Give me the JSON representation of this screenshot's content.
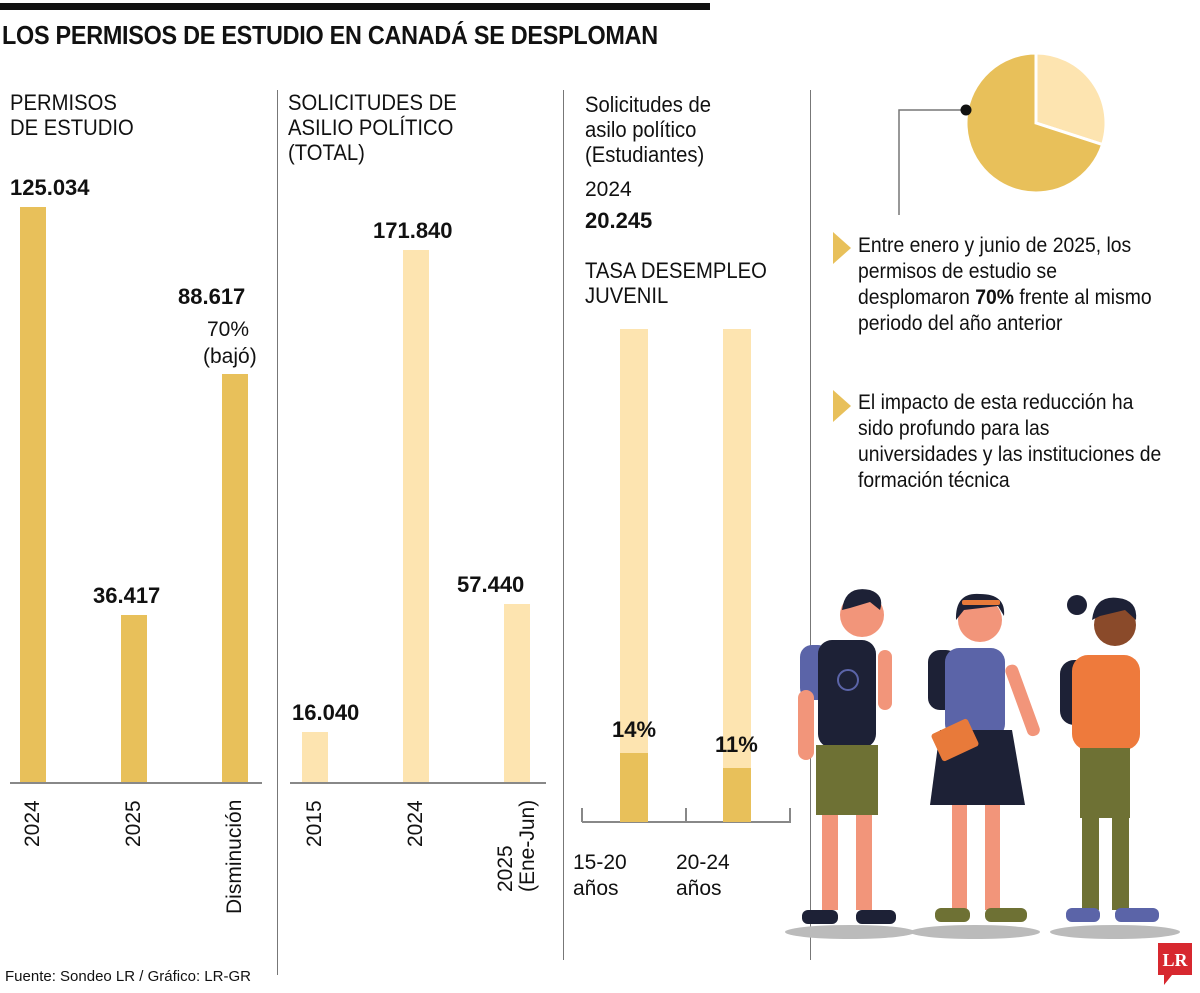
{
  "title": "LOS PERMISOS DE ESTUDIO EN CANADÁ SE DESPLOMAN",
  "colors": {
    "dark": "#e8c05a",
    "light": "#fde4b0",
    "text": "#111111",
    "logo": "#d7282f"
  },
  "chart_data": [
    {
      "type": "bar",
      "title": "PERMISOS DE ESTUDIO",
      "categories": [
        "2024",
        "2025",
        "Disminución"
      ],
      "values": [
        125034,
        36417,
        88617
      ],
      "data_labels": [
        "125.034",
        "36.417",
        "88.617"
      ],
      "annotation": [
        "70%",
        "(bajó)"
      ],
      "color": "#e8c05a"
    },
    {
      "type": "bar",
      "title": "SOLICITUDES DE ASILIO POLÍTICO (TOTAL)",
      "categories": [
        "2015",
        "2024",
        "2025 (Ene-Jun)"
      ],
      "category_lines": [
        [
          "2015"
        ],
        [
          "2024"
        ],
        [
          "2025",
          "(Ene-Jun)"
        ]
      ],
      "values": [
        16040,
        171840,
        57440
      ],
      "data_labels": [
        "16.040",
        "171.840",
        "57.440"
      ],
      "color": "#fde4b0"
    },
    {
      "type": "bar",
      "title": "TASA DESEMPLEO JUVENIL",
      "categories": [
        "15-20 años",
        "20-24 años"
      ],
      "category_lines": [
        [
          "15-20",
          "años"
        ],
        [
          "20-24",
          "años"
        ]
      ],
      "values": [
        14,
        11
      ],
      "data_labels": [
        "14%",
        "11%"
      ],
      "ylim": [
        0,
        100
      ],
      "color": "#e8c05a",
      "background_color": "#fde4b0"
    },
    {
      "type": "pie",
      "slices": [
        {
          "value": 70,
          "color": "#e8c05a"
        },
        {
          "value": 30,
          "color": "#fde4b0"
        }
      ]
    }
  ],
  "asylum_students": {
    "label_lines": [
      "Solicitudes de",
      "asilo político",
      "(Estudiantes)"
    ],
    "year": "2024",
    "value": "20.245"
  },
  "unemployment_title_lines": [
    "TASA DESEMPLEO",
    "JUVENIL"
  ],
  "panel1_title_lines": [
    "PERMISOS",
    "DE ESTUDIO"
  ],
  "panel2_title_lines": [
    "SOLICITUDES DE",
    "ASILIO POLÍTICO",
    "(TOTAL)"
  ],
  "bullets": [
    {
      "pre": "Entre enero y junio de 2025, los permisos de estudio se desplomaron ",
      "bold": "70%",
      "post": " frente al mismo periodo del año anterior"
    },
    {
      "pre": "El impacto de esta reducción ha sido profundo para las universidades y las instituciones de formación técnica",
      "bold": "",
      "post": ""
    }
  ],
  "footer": "Fuente: Sondeo LR / Gráfico: LR-GR",
  "logo": "LR"
}
